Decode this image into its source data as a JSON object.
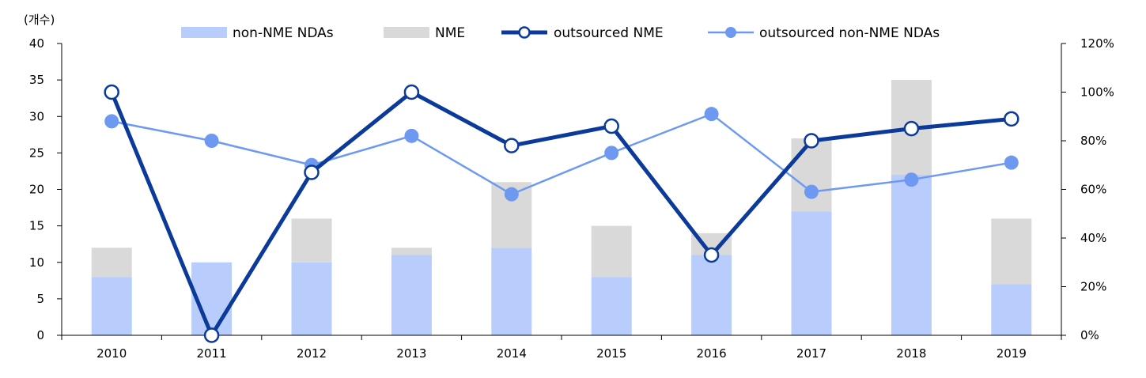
{
  "chart_data": {
    "type": "bar",
    "title": "",
    "unit_label": "(개수)",
    "categories": [
      "2010",
      "2011",
      "2012",
      "2013",
      "2014",
      "2015",
      "2016",
      "2017",
      "2018",
      "2019"
    ],
    "bar_series": [
      {
        "name": "non-NME NDAs",
        "values": [
          8,
          10,
          10,
          11,
          12,
          8,
          11,
          17,
          22,
          7
        ],
        "color": "#b8cdfb"
      },
      {
        "name": "NME",
        "values": [
          4,
          0,
          6,
          1,
          9,
          7,
          3,
          10,
          13,
          9
        ],
        "color": "#d9d9d9"
      }
    ],
    "line_series": [
      {
        "name": "outsourced NME",
        "axis": "right",
        "values": [
          100,
          0,
          67,
          100,
          78,
          86,
          33,
          80,
          85,
          89
        ],
        "color": "#0b3a9a",
        "marker": "hollow-circle"
      },
      {
        "name": "outsourced non-NME NDAs",
        "axis": "right",
        "values": [
          88,
          80,
          70,
          82,
          58,
          75,
          91,
          59,
          64,
          71
        ],
        "color": "#6d9af0",
        "marker": "filled-circle"
      }
    ],
    "y_left": {
      "min": 0,
      "max": 40,
      "ticks": [
        "0",
        "5",
        "10",
        "15",
        "20",
        "25",
        "30",
        "35",
        "40"
      ]
    },
    "y_right": {
      "min": 0,
      "max": 120,
      "ticks": [
        "0%",
        "20%",
        "40%",
        "60%",
        "80%",
        "100%",
        "120%"
      ]
    },
    "legend_position": "top",
    "grid": false
  }
}
